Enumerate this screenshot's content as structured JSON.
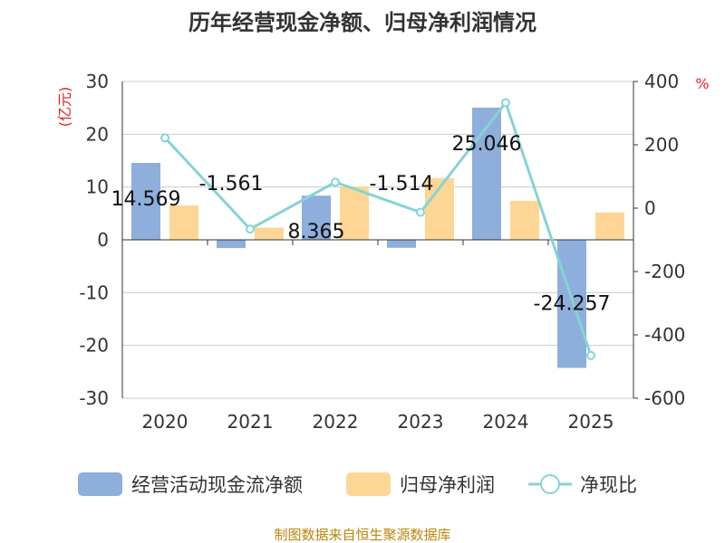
{
  "chart_data": {
    "type": "bar+line",
    "title": "历年经营现金净额、归母净利润情况",
    "categories": [
      "2020",
      "2021",
      "2022",
      "2023",
      "2024",
      "2025"
    ],
    "series": [
      {
        "name": "经营活动现金流净额",
        "axis": "left",
        "kind": "bar",
        "color": "#8eaedc",
        "values": [
          14.569,
          -1.561,
          8.365,
          -1.514,
          25.046,
          -24.257
        ],
        "labels": [
          "14.569",
          "-1.561",
          "8.365",
          "-1.514",
          "25.046",
          "-24.257"
        ]
      },
      {
        "name": "归母净利润",
        "axis": "left",
        "kind": "bar",
        "color": "#fdd696",
        "values": [
          6.5,
          2.3,
          10.1,
          11.7,
          7.4,
          5.2
        ]
      },
      {
        "name": "净现比",
        "axis": "right",
        "kind": "line",
        "color": "#86d3d6",
        "values": [
          222,
          -66,
          82,
          -13,
          333,
          -465
        ]
      }
    ],
    "left_axis": {
      "unit": "(亿元)",
      "min": -30,
      "max": 30,
      "ticks": [
        30,
        20,
        10,
        0,
        -10,
        -20,
        -30
      ]
    },
    "right_axis": {
      "unit": "%",
      "min": -600,
      "max": 400,
      "ticks": [
        400,
        200,
        0,
        -200,
        -400,
        -600
      ]
    },
    "source": "制图数据来自恒生聚源数据库"
  }
}
